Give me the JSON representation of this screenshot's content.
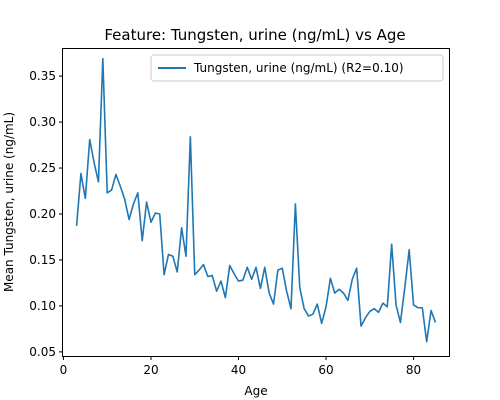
{
  "chart_data": {
    "type": "line",
    "title": "Feature: Tungsten, urine (ng/mL) vs Age",
    "xlabel": "Age",
    "ylabel": "Mean Tungsten, urine (ng/mL)",
    "xlim": [
      -0.1,
      88.1
    ],
    "ylim": [
      0.0455,
      0.3795
    ],
    "xticks": [
      0,
      20,
      40,
      60,
      80
    ],
    "yticks": [
      0.05,
      0.1,
      0.15,
      0.2,
      0.25,
      0.3,
      0.35
    ],
    "ytick_labels": [
      "0.05",
      "0.10",
      "0.15",
      "0.20",
      "0.25",
      "0.30",
      "0.35"
    ],
    "grid": false,
    "legend_position": "top-right",
    "line_color": "#1f77b4",
    "series": [
      {
        "name": "Tungsten, urine (ng/mL) (R2=0.10)",
        "x": [
          3,
          4,
          5,
          6,
          7,
          8,
          9,
          10,
          11,
          12,
          13,
          14,
          15,
          16,
          17,
          18,
          19,
          20,
          21,
          22,
          23,
          24,
          25,
          26,
          27,
          28,
          29,
          30,
          31,
          32,
          33,
          34,
          35,
          36,
          37,
          38,
          39,
          40,
          41,
          42,
          43,
          44,
          45,
          46,
          47,
          48,
          49,
          50,
          51,
          52,
          53,
          54,
          55,
          56,
          57,
          58,
          59,
          60,
          61,
          62,
          63,
          64,
          65,
          66,
          67,
          68,
          69,
          70,
          71,
          72,
          73,
          74,
          75,
          76,
          77,
          78,
          79,
          80,
          81,
          82,
          83,
          84,
          85
        ],
        "y": [
          0.187,
          0.244,
          0.217,
          0.281,
          0.256,
          0.235,
          0.369,
          0.223,
          0.226,
          0.243,
          0.23,
          0.216,
          0.194,
          0.211,
          0.223,
          0.171,
          0.213,
          0.191,
          0.201,
          0.2,
          0.134,
          0.156,
          0.154,
          0.137,
          0.185,
          0.154,
          0.284,
          0.134,
          0.139,
          0.145,
          0.132,
          0.133,
          0.116,
          0.127,
          0.109,
          0.144,
          0.135,
          0.127,
          0.128,
          0.142,
          0.129,
          0.142,
          0.119,
          0.142,
          0.114,
          0.102,
          0.139,
          0.141,
          0.116,
          0.097,
          0.211,
          0.12,
          0.097,
          0.089,
          0.091,
          0.102,
          0.081,
          0.099,
          0.13,
          0.114,
          0.118,
          0.114,
          0.106,
          0.129,
          0.141,
          0.078,
          0.087,
          0.094,
          0.097,
          0.093,
          0.103,
          0.099,
          0.167,
          0.101,
          0.082,
          0.12,
          0.161,
          0.101,
          0.098,
          0.098,
          0.061,
          0.095,
          0.082
        ]
      }
    ]
  }
}
